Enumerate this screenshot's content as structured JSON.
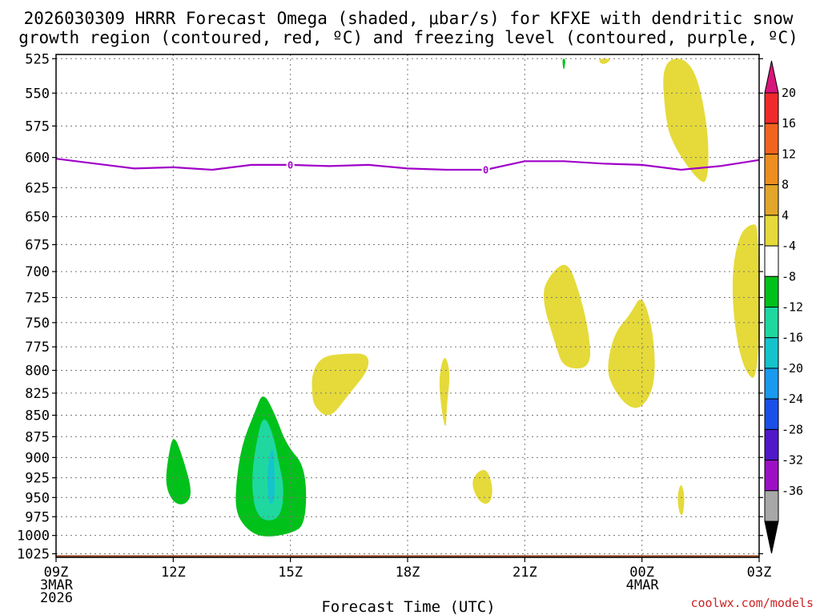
{
  "chart_data": {
    "type": "contour",
    "title_line1": "2026030309 HRRR Forecast Omega (shaded, μbar/s) for KFXE with dendritic snow",
    "title_line2": "growth region (contoured, red, ºC) and freezing level (contoured, purple, ºC)",
    "xlabel": "Forecast Time (UTC)",
    "credit": "coolwx.com/models",
    "x_range_hours": [
      0,
      18
    ],
    "y_range_mb": [
      1030,
      522
    ],
    "x_ticks": [
      {
        "h": 0,
        "label": "09Z",
        "sub1": "3MAR",
        "sub2": "2026"
      },
      {
        "h": 3,
        "label": "12Z",
        "sub1": "",
        "sub2": ""
      },
      {
        "h": 6,
        "label": "15Z",
        "sub1": "",
        "sub2": ""
      },
      {
        "h": 9,
        "label": "18Z",
        "sub1": "",
        "sub2": ""
      },
      {
        "h": 12,
        "label": "21Z",
        "sub1": "",
        "sub2": ""
      },
      {
        "h": 15,
        "label": "00Z",
        "sub1": "4MAR",
        "sub2": ""
      },
      {
        "h": 18,
        "label": "03Z",
        "sub1": "",
        "sub2": ""
      }
    ],
    "y_ticks": [
      "525",
      "550",
      "575",
      "600",
      "625",
      "650",
      "675",
      "700",
      "725",
      "750",
      "775",
      "800",
      "825",
      "850",
      "875",
      "900",
      "925",
      "950",
      "975",
      "1000",
      "1025"
    ],
    "colorbar": {
      "levels": [
        "20",
        "16",
        "12",
        "8",
        "4",
        "-4",
        "-8",
        "-12",
        "-16",
        "-20",
        "-24",
        "-28",
        "-32",
        "-36"
      ],
      "colors": [
        "#d8157a",
        "#f02a2a",
        "#f06420",
        "#ee8e20",
        "#e2a62a",
        "#e5da3a",
        "#ffffff",
        "#00c11a",
        "#1ed8a0",
        "#14c4cc",
        "#1a9aee",
        "#1a50e8",
        "#5018c8",
        "#9c10c4",
        "#a8a8a8",
        "#000000"
      ]
    },
    "freezing_level": {
      "label": "0",
      "label_hours": [
        6.0,
        11.0
      ],
      "hours": [
        0,
        1,
        2,
        3,
        4,
        5,
        6,
        7,
        8,
        9,
        10,
        11,
        12,
        13,
        14,
        15,
        16,
        17,
        18
      ],
      "pressure_mb": [
        601,
        605,
        609,
        608,
        610,
        606,
        606,
        607,
        606,
        609,
        610,
        610,
        603,
        603,
        605,
        606,
        610,
        607,
        602
      ]
    },
    "omega_regions": [
      {
        "name": "green-12z",
        "value": -6,
        "points": [
          [
            3.0,
            957
          ],
          [
            2.8,
            935
          ],
          [
            2.85,
            905
          ],
          [
            3.0,
            870
          ],
          [
            3.25,
            900
          ],
          [
            3.5,
            945
          ],
          [
            3.3,
            960
          ]
        ]
      },
      {
        "name": "green-14z",
        "value": -6,
        "points": [
          [
            4.6,
            935
          ],
          [
            4.75,
            885
          ],
          [
            5.1,
            845
          ],
          [
            5.3,
            823
          ],
          [
            5.6,
            848
          ],
          [
            5.9,
            885
          ],
          [
            6.4,
            912
          ],
          [
            6.4,
            985
          ],
          [
            6.0,
            998
          ],
          [
            5.3,
            1003
          ],
          [
            4.9,
            993
          ],
          [
            4.6,
            970
          ]
        ]
      },
      {
        "name": "teal-14z",
        "value": -10,
        "points": [
          [
            5.0,
            930
          ],
          [
            5.1,
            888
          ],
          [
            5.3,
            848
          ],
          [
            5.55,
            870
          ],
          [
            5.7,
            905
          ],
          [
            5.85,
            940
          ],
          [
            5.75,
            975
          ],
          [
            5.4,
            982
          ],
          [
            5.1,
            970
          ]
        ]
      },
      {
        "name": "cyan-14z",
        "value": -14,
        "points": [
          [
            5.4,
            930
          ],
          [
            5.45,
            900
          ],
          [
            5.55,
            885
          ],
          [
            5.6,
            920
          ],
          [
            5.6,
            955
          ],
          [
            5.45,
            960
          ]
        ]
      },
      {
        "name": "green-top",
        "value": -6,
        "points": [
          [
            12.95,
            525
          ],
          [
            13.05,
            525
          ],
          [
            13.0,
            535
          ]
        ]
      },
      {
        "name": "yellow-16z",
        "value": 6,
        "points": [
          [
            6.55,
            803
          ],
          [
            6.8,
            785
          ],
          [
            7.4,
            782
          ],
          [
            8.0,
            782
          ],
          [
            8.0,
            800
          ],
          [
            7.5,
            826
          ],
          [
            7.0,
            855
          ],
          [
            6.6,
            840
          ],
          [
            6.55,
            823
          ]
        ]
      },
      {
        "name": "yellow-19z",
        "value": 6,
        "points": [
          [
            9.8,
            805
          ],
          [
            9.95,
            781
          ],
          [
            10.1,
            803
          ],
          [
            10.0,
            840
          ],
          [
            9.98,
            870
          ],
          [
            9.85,
            840
          ]
        ]
      },
      {
        "name": "yellow-20z",
        "value": 6,
        "points": [
          [
            10.6,
            927
          ],
          [
            11.0,
            910
          ],
          [
            11.2,
            938
          ],
          [
            11.1,
            960
          ],
          [
            10.8,
            955
          ]
        ]
      },
      {
        "name": "yellow-22z",
        "value": 6,
        "points": [
          [
            12.4,
            722
          ],
          [
            12.7,
            700
          ],
          [
            13.1,
            690
          ],
          [
            13.4,
            720
          ],
          [
            13.65,
            760
          ],
          [
            13.7,
            798
          ],
          [
            13.0,
            798
          ],
          [
            12.8,
            775
          ]
        ]
      },
      {
        "name": "yellow-00z",
        "value": 6,
        "points": [
          [
            14.1,
            795
          ],
          [
            14.3,
            760
          ],
          [
            14.7,
            742
          ],
          [
            15.0,
            720
          ],
          [
            15.3,
            760
          ],
          [
            15.35,
            815
          ],
          [
            15.0,
            843
          ],
          [
            14.6,
            840
          ],
          [
            14.2,
            815
          ]
        ]
      },
      {
        "name": "yellow-top-right",
        "value": 6,
        "points": [
          [
            15.5,
            525
          ],
          [
            16.3,
            525
          ],
          [
            16.7,
            575
          ],
          [
            16.7,
            622
          ],
          [
            16.4,
            618
          ],
          [
            15.8,
            590
          ],
          [
            15.6,
            570
          ]
        ]
      },
      {
        "name": "yellow-top-small",
        "value": 6,
        "points": [
          [
            13.85,
            525
          ],
          [
            14.25,
            525
          ],
          [
            14.0,
            530
          ]
        ]
      },
      {
        "name": "yellow-right-edge",
        "value": 6,
        "points": [
          [
            17.5,
            665
          ],
          [
            17.8,
            656
          ],
          [
            18.0,
            658
          ],
          [
            18.0,
            815
          ],
          [
            17.6,
            800
          ],
          [
            17.35,
            750
          ],
          [
            17.3,
            700
          ]
        ]
      },
      {
        "name": "yellow-01z",
        "value": 6,
        "points": [
          [
            15.9,
            948
          ],
          [
            16.0,
            930
          ],
          [
            16.1,
            948
          ],
          [
            16.05,
            975
          ],
          [
            15.95,
            970
          ]
        ]
      }
    ],
    "surface_band": {
      "pressure_mb": 1027
    }
  }
}
